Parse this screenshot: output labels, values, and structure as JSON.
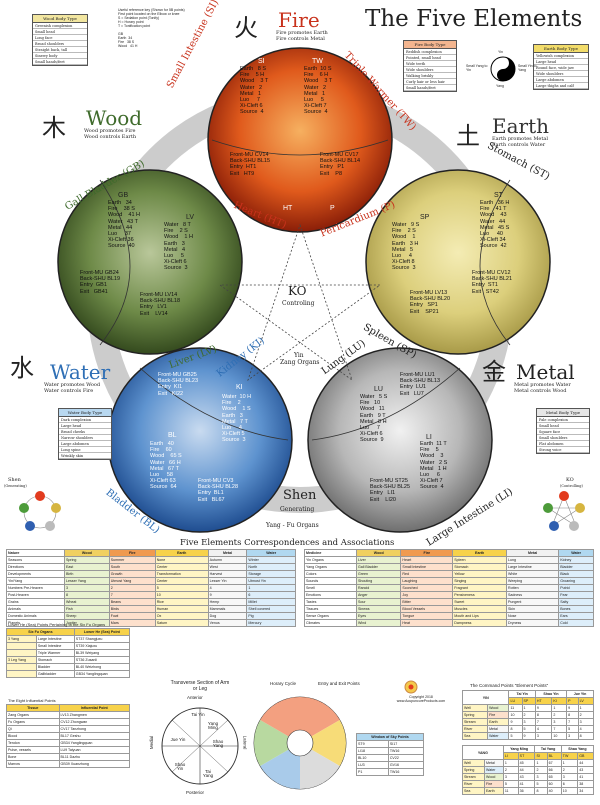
{
  "title": "The Five Elements",
  "fire": {
    "char": "火",
    "name": "Fire",
    "line1": "Fire promotes Earth",
    "line2": "Fire controls Metal",
    "organ_left": "Small Intestine (SI)",
    "organ_right": "Triple Warmer (TW)",
    "organ_bottom_left": "Heart (HT)",
    "organ_bottom_right": "Pericardium (P)",
    "si_label": "SI",
    "tw_label": "TW",
    "ht_label": "HT",
    "p_label": "P",
    "si_points": "Earth   8 S\nFire    5 H\nWood    3 T\nWater   2\nMetal   1\nLuo     7\nXi-Cleft 6\nSource  4",
    "tw_points": "Earth  10 S\nFire    6 H\nWood    3 T\nWater   2\nMetal   1\nLuo     5\nXi-Cleft 7\nSource  4",
    "ht_points": "Front-MU CV14\nBack-SHU BL15\nEntry  HT1\nExit   HT9",
    "p_points": "Front-MU CV17\nBack-SHU BL14\nEntry   P1\nExit    P8"
  },
  "wood": {
    "char": "木",
    "name": "Wood",
    "line1": "Wood promotes Fire",
    "line2": "Wood controls Earth",
    "organ_top": "Gall Bladder (GB)",
    "organ_bottom": "Liver (LV)",
    "gb_label": "GB",
    "lv_label": "LV",
    "gb_points": "Earth   34\nFire    38 S\nWood    41 H\nWater   43 T\nMetal   44\nLuo     37\nXi-Cleft 36\nSource  40",
    "lv_points": "Water   8 T\nFire    2 S\nWood    1 H\nEarth   3\nMetal   4\nLuo     5\nXi-Cleft 6\nSource  3",
    "front_mu": "Front-MU GB24\nBack-SHU BL19\nEntry  GB1\nExit   GB41",
    "lv_mu": "Front-MU LV14\nBack-SHU BL18\nEntry   LV1\nExit    LV14"
  },
  "earth": {
    "char": "土",
    "name": "Earth",
    "line1": "Earth promotes Metal",
    "line2": "Earth controls Water",
    "organ_top": "Stomach (ST)",
    "organ_bottom": "Spleen (SP)",
    "st_label": "ST",
    "sp_label": "SP",
    "st_points": "Earth   36 H\nFire    41 T\nWood    43\nWater   44\nMetal   45 S\nLuo     40\nXi-Cleft 34\nSource  42",
    "sp_points": "Water   9 S\nFire    2 S\nWood    1\nEarth   3 H\nMetal   5\nLuo     4\nXi-Cleft 8\nSource  3",
    "st_mu": "Front-MU CV12\nBack-SHU BL21\nEntry  ST1\nExit   ST42",
    "sp_mu": "Front-MU LV13\nBack-SHU BL20\nEntry   SP1\nExit    SP21"
  },
  "water": {
    "char": "水",
    "name": "Water",
    "line1": "Water promotes Wood",
    "line2": "Water controls Fire",
    "organ_top": "Kidney (KI)",
    "organ_bottom": "Bladder (BL)",
    "ki_label": "KI",
    "bl_label": "BL",
    "ki_mu": "Front-MU GB25\nBack-SHU BL23\nEntry  KI1\nExit   KI22",
    "ki_points": "Water  10 H\nFire    2\nWood    1 S\nEarth   3\nMetal   7 T\nLuo     4\nXi-Cleft 5\nSource  3",
    "bl_points": "Earth   40\nFire    60\nWood    65 S\nWater   66 H\nMetal   67 T\nLuo     58\nXi-Cleft 63\nSource  64",
    "bl_mu": "Front-MU CV3\nBack-SHU BL28\nEntry  BL1\nExit   BL67"
  },
  "metal": {
    "char": "金",
    "name": "Metal",
    "line1": "Metal promotes Water",
    "line2": "Metal controls Wood",
    "organ_top": "Lung (LU)",
    "organ_bottom": "Large Intestine (LI)",
    "lu_label": "LU",
    "li_label": "LI",
    "lu_mu": "Front-MU LU1\nBack-SHU BL13\nEntry  LU1\nExit   LU7",
    "lu_points": "Water   5 S\nFire   10\nWood   11\nEarth   9 T\nMetal   8 H\nLuo     7\nXi-Cleft 6\nSource  9",
    "li_points": "Earth  11 T\nFire    5\nWood    3\nWater   2 S\nMetal   1 H\nLuo     6\nXi-Cleft 7\nSource  4",
    "li_mu": "Front-MU ST25\nBack-SHU BL25\nEntry   LI1\nExit    LI20"
  },
  "center": {
    "ko": "KO",
    "ko_sub": "Controling",
    "yin": "Yin",
    "yin_sub": "Zang Organs",
    "shen": "Shen",
    "shen_sub": "Generating",
    "yang": "Yang - Fu Organs"
  },
  "ko_mini": {
    "label": "KO",
    "sub": "(Controlling)"
  },
  "shen_mini": {
    "label": "Shen",
    "sub": "(Generating)"
  },
  "legend_notes": "Useful reference key (Shown for 5B points)\nFirst point located on the Elbow or knee\nS = Sedation point (Tonify)\nH = Horary point\nT = Tonification point",
  "legend_gb": "GB\nEarth  34\nFire   38 S\nWood   41 H",
  "body_types": {
    "wood": {
      "title": "Wood Body Type",
      "rows": [
        "Greenish complexion",
        "Small head",
        "Long face",
        "Broad shoulders",
        "Straight back, tall",
        "Sinewy body",
        "Small hands/feet"
      ]
    },
    "fire": {
      "title": "Fire Body Type",
      "rows": [
        "Reddish complexion",
        "Pointed, small head",
        "Wide teeth",
        "Wide shoulders",
        "Walking briskly",
        "Curly hair or less hair",
        "Small hands/feet"
      ]
    },
    "earth": {
      "title": "Earth Body Type",
      "rows": [
        "Yellowish complexion",
        "Large head",
        "Round face, wide jaw",
        "Wide shoulders",
        "Large abdomen",
        "Large thighs and calf"
      ]
    },
    "water": {
      "title": "Water Body Type",
      "rows": [
        "Dark complexion",
        "Large head",
        "Broad cheeks",
        "Narrow shoulders",
        "Large abdomen",
        "Long spine",
        "Wrinkly skin"
      ]
    },
    "metal": {
      "title": "Metal Body Type",
      "rows": [
        "Pale complexion",
        "Small head",
        "Square face",
        "Small shoulders",
        "Flat abdomen",
        "Strong voice"
      ]
    }
  },
  "yinyang": {
    "label_top": "Yin",
    "label_bottom": "Yang",
    "left": "Small Yang to Yin",
    "right": "Small Yin to Yang"
  },
  "correspondences": {
    "title": "Five Elements Correspondences and Associations",
    "headers": [
      "Nature",
      "Wood",
      "Fire",
      "Earth",
      "Metal",
      "Water"
    ],
    "rows_left": [
      [
        "Seasons",
        "Spring",
        "Summer",
        "None",
        "Autumn",
        "Winter"
      ],
      [
        "Directions",
        "East",
        "South",
        "Center",
        "West",
        "North"
      ],
      [
        "Developments",
        "Birth",
        "Growth",
        "Transformation",
        "Harvest",
        "Storage"
      ],
      [
        "Yin/Yang",
        "Lesser Yang",
        "Utmost Yang",
        "Center",
        "Lesser Yin",
        "Utmost Yin"
      ],
      [
        "Numbers  Pre-Heaven",
        "3",
        "2",
        "5",
        "4",
        "1"
      ],
      [
        "Post-Heaven",
        "8",
        "7",
        "10",
        "9",
        "6"
      ],
      [
        "Grains",
        "Wheat",
        "Beans",
        "Rice",
        "Hemp",
        "Millet"
      ],
      [
        "Animals",
        "Fish",
        "Birds",
        "Human",
        "Mammals",
        "Shell covered"
      ],
      [
        "Domestic Animals",
        "Sheep",
        "Fowl",
        "Ox",
        "Dog",
        "Pig"
      ],
      [
        "Planets",
        "Jupiter",
        "Mars",
        "Saturn",
        "Venus",
        "Mercury"
      ]
    ],
    "headers_right": [
      "Medicine",
      "Wood",
      "Fire",
      "Earth",
      "Metal",
      "Water"
    ],
    "rows_right": [
      [
        "Yin Organs",
        "Liver",
        "Heart",
        "Spleen",
        "Lung",
        "Kidney"
      ],
      [
        "Yang Organs",
        "Gall Bladder",
        "Small Intestine",
        "Stomach",
        "Large Intestine",
        "Bladder"
      ],
      [
        "Colors",
        "Green",
        "Red",
        "Yellow",
        "White",
        "Black"
      ],
      [
        "Sounds",
        "Shouting",
        "Laughing",
        "Singing",
        "Weeping",
        "Groaning"
      ],
      [
        "Smell",
        "Rancid",
        "Scorched",
        "Fragrant",
        "Rotten",
        "Putrid"
      ],
      [
        "Emotions",
        "Anger",
        "Joy",
        "Pensiveness",
        "Sadness",
        "Fear"
      ],
      [
        "Tastes",
        "Sour",
        "Bitter",
        "Sweet",
        "Pungent",
        "Salty"
      ],
      [
        "Tissues",
        "Sinews",
        "Blood Vessels",
        "Muscles",
        "Skin",
        "Bones"
      ],
      [
        "Sense Organs",
        "Eyes",
        "Tongue",
        "Mouth and Lips",
        "Nose",
        "Ears"
      ],
      [
        "Climates",
        "Wind",
        "Heat",
        "Dampness",
        "Dryness",
        "Cold"
      ]
    ]
  },
  "lower_he": {
    "title": "Lower He (Sea) Points Pertaining to the Six Fu Organs",
    "six_fu_head": "Six Fu Organs",
    "lower_he_head": "Lower He (Sea) Point",
    "rows": [
      [
        "3 Yang",
        "Large Intestine",
        "ST37 Shangjuxu"
      ],
      [
        "",
        "Small Intestine",
        "ST39 Xiajuxu"
      ],
      [
        "",
        "Triple Warmer",
        "BL39 Weiyang"
      ],
      [
        "3 Leg Yang",
        "Stomach",
        "ST36 Zusanli"
      ],
      [
        "",
        "Bladder",
        "BL40 Weizhong"
      ],
      [
        "",
        "Gallbladder",
        "GB34 Yanglingquan"
      ]
    ]
  },
  "influential": {
    "title": "The Eight Influential Points",
    "head": [
      "Tissue",
      "Influential Point"
    ],
    "rows": [
      [
        "Zang Organs",
        "LV13 Zhangmen"
      ],
      [
        "Fu Organs",
        "CV12 Zhongwan"
      ],
      [
        "Qi",
        "CV17 Tanzhong"
      ],
      [
        "Blood",
        "BL17 Geshu"
      ],
      [
        "Tendon",
        "GB34 Yanglingquan"
      ],
      [
        "Pulse, vessels",
        "LU9 Taiyuan"
      ],
      [
        "Bone",
        "BL11 Dazhu"
      ],
      [
        "Marrow",
        "GB39 Xuanzhong"
      ]
    ]
  },
  "arm_leg": {
    "title": "Transverse Section of Arm or Leg",
    "anterior": "Anterior",
    "posterior": "Posterior",
    "medial": "Medial",
    "lateral": "Lateral",
    "seg1": "Tai Yin",
    "seg2": "Yang Ming",
    "seg3": "Jue Yin",
    "seg4": "Shao Yang",
    "seg5": "Shao Yin",
    "seg6": "Tai Yang"
  },
  "cycle": {
    "title": "Horary Cycle",
    "entry_exit": "Entry and Exit Points"
  },
  "window_sky": {
    "title": "Window of Sky Points",
    "rows": [
      [
        "ST9",
        "SI17"
      ],
      [
        "LI18",
        "TW16"
      ],
      [
        "BL10",
        "CV22"
      ],
      [
        "LU3",
        "GV16"
      ],
      [
        "P1",
        "TW16"
      ]
    ]
  },
  "copyright": "Copyright 2018\nwww.AcupuncureProducts.com",
  "command": {
    "title": "The Command Points \"Element Points\"",
    "yin_head": [
      "YIN",
      "Tai Yin",
      "Shao Yin",
      "Jue Yin"
    ],
    "yin_sub": [
      "LU",
      "SP",
      "HT",
      "KI",
      "P",
      "LV"
    ],
    "yin_rows": [
      [
        "Well",
        "Wood",
        "11",
        "1",
        "9",
        "1",
        "9",
        "1"
      ],
      [
        "Spring",
        "Fire",
        "10",
        "2",
        "8",
        "2",
        "8",
        "2"
      ],
      [
        "Stream",
        "Earth",
        "9",
        "3",
        "7",
        "3",
        "7",
        "3"
      ],
      [
        "River",
        "Metal",
        "8",
        "5",
        "4",
        "7",
        "5",
        "4"
      ],
      [
        "Sea",
        "Water",
        "5",
        "9",
        "3",
        "10",
        "3",
        "8"
      ]
    ],
    "yang_head": [
      "YANG",
      "Yang Ming",
      "Tai Yang",
      "Shao Yang"
    ],
    "yang_sub": [
      "LI",
      "ST",
      "SI",
      "BL",
      "TW",
      "GB"
    ],
    "yang_rows": [
      [
        "Well",
        "Metal",
        "1",
        "45",
        "1",
        "67",
        "1",
        "44"
      ],
      [
        "Spring",
        "Water",
        "2",
        "44",
        "2",
        "66",
        "2",
        "43"
      ],
      [
        "Stream",
        "Wood",
        "3",
        "43",
        "3",
        "65",
        "3",
        "41"
      ],
      [
        "River",
        "Fire",
        "5",
        "41",
        "5",
        "60",
        "6",
        "38"
      ],
      [
        "Sea",
        "Earth",
        "11",
        "36",
        "8",
        "40",
        "10",
        "34"
      ]
    ]
  },
  "colors": {
    "fire": "#d8441c",
    "wood": "#4a6b2a",
    "earth": "#d3c46a",
    "water": "#2f6fb5",
    "metal": "#9a9a9a"
  }
}
